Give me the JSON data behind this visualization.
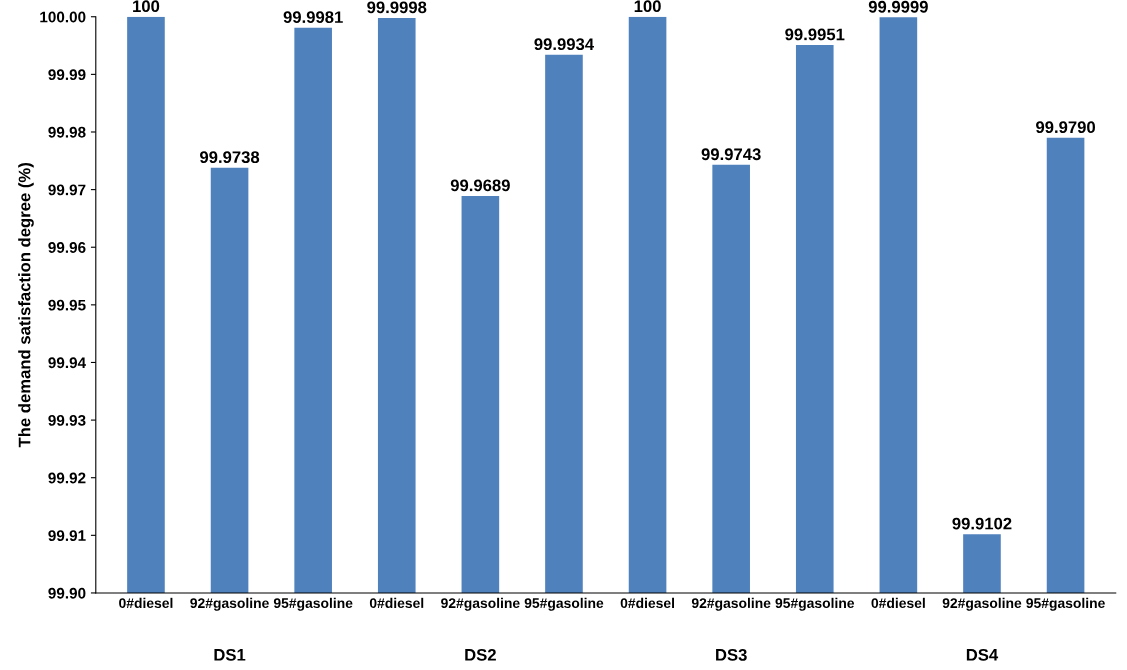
{
  "chart_data": {
    "type": "bar",
    "ylabel": "The demand satisfaction degree (%)",
    "categories": [
      "0#diesel",
      "92#gasoline",
      "95#gasoline",
      "0#diesel",
      "92#gasoline",
      "95#gasoline",
      "0#diesel",
      "92#gasoline",
      "95#gasoline",
      "0#diesel",
      "92#gasoline",
      "95#gasoline"
    ],
    "values": [
      100,
      99.9738,
      99.9981,
      99.9998,
      99.9689,
      99.9934,
      100,
      99.9743,
      99.9951,
      99.9999,
      99.9102,
      99.979
    ],
    "value_labels": [
      "100",
      "99.9738",
      "99.9981",
      "99.9998",
      "99.9689",
      "99.9934",
      "100",
      "99.9743",
      "99.9951",
      "99.9999",
      "99.9102",
      "99.9790"
    ],
    "color": "#4f81bd",
    "annotations": [
      "DS1",
      "DS2",
      "DS3",
      "DS4"
    ],
    "ylim": [
      99.9,
      100.0
    ],
    "yticks": [
      {
        "value": 99.9,
        "label": "99.90"
      },
      {
        "value": 99.91,
        "label": "99.91"
      },
      {
        "value": 99.92,
        "label": "99.92"
      },
      {
        "value": 99.93,
        "label": "99.93"
      },
      {
        "value": 99.94,
        "label": "99.94"
      },
      {
        "value": 99.95,
        "label": "99.95"
      },
      {
        "value": 99.96,
        "label": "99.96"
      },
      {
        "value": 99.97,
        "label": "99.97"
      },
      {
        "value": 99.98,
        "label": "99.98"
      },
      {
        "value": 99.99,
        "label": "99.99"
      },
      {
        "value": 100.0,
        "label": "100.00"
      }
    ],
    "grid": false
  }
}
